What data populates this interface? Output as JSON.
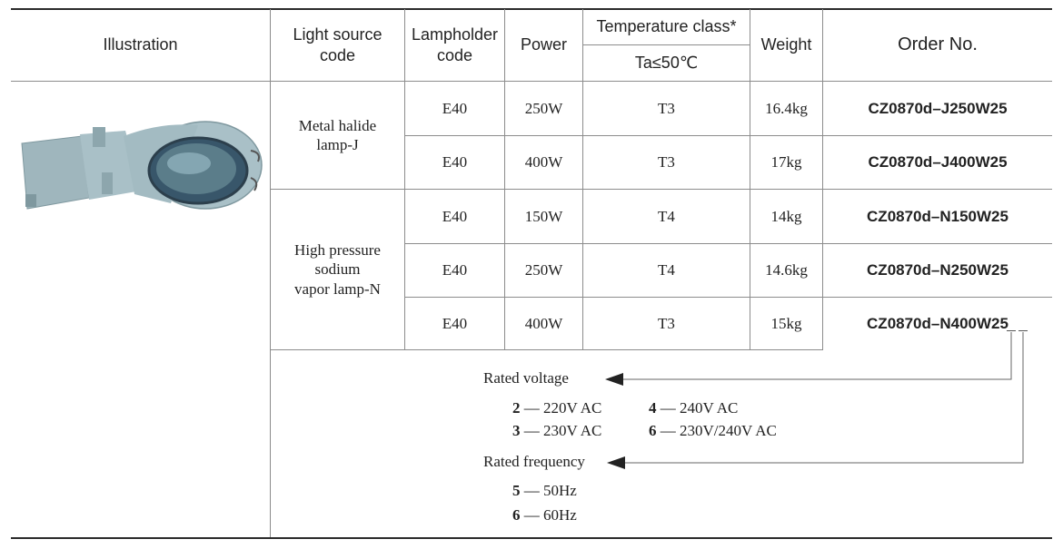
{
  "header": {
    "illustration": "Illustration",
    "light_source_line1": "Light source",
    "light_source_line2": "code",
    "lampholder_line1": "Lampholder",
    "lampholder_line2": "code",
    "power": "Power",
    "temperature_class": "Temperature class*",
    "temperature_condition": "Ta≤50℃",
    "weight": "Weight",
    "order_no": "Order No."
  },
  "groups": [
    {
      "lines": [
        "Metal halide",
        "lamp-J"
      ]
    },
    {
      "lines": [
        "High pressure",
        "sodium",
        "vapor lamp-N"
      ]
    }
  ],
  "rows": [
    {
      "lampholder": "E40",
      "power": "250W",
      "temp": "T3",
      "weight": "16.4kg",
      "order": "CZ0870d–J250W25"
    },
    {
      "lampholder": "E40",
      "power": "400W",
      "temp": "T3",
      "weight": "17kg",
      "order": "CZ0870d–J400W25"
    },
    {
      "lampholder": "E40",
      "power": "150W",
      "temp": "T4",
      "weight": "14kg",
      "order": "CZ0870d–N150W25"
    },
    {
      "lampholder": "E40",
      "power": "250W",
      "temp": "T4",
      "weight": "14.6kg",
      "order": "CZ0870d–N250W25"
    },
    {
      "lampholder": "E40",
      "power": "400W",
      "temp": "T3",
      "weight": "15kg",
      "order": "CZ0870d–N400W25"
    }
  ],
  "legend": {
    "voltage_title": "Rated voltage",
    "voltage_options": [
      {
        "code": "2",
        "text": "— 220V  AC"
      },
      {
        "code": "4",
        "text": "— 240V  AC"
      },
      {
        "code": "3",
        "text": "— 230V  AC"
      },
      {
        "code": "6",
        "text": "— 230V/240V  AC"
      }
    ],
    "frequency_title": "Rated frequency",
    "frequency_options": [
      {
        "code": "5",
        "text": "— 50Hz"
      },
      {
        "code": "6",
        "text": "— 60Hz"
      }
    ]
  },
  "colors": {
    "lamp_body": "#a9c0c7",
    "lamp_shadow": "#7f989f",
    "lens": "#5b7d8a",
    "rules": "#8c8c8c"
  },
  "illustration_icon": "street-lamp-icon"
}
